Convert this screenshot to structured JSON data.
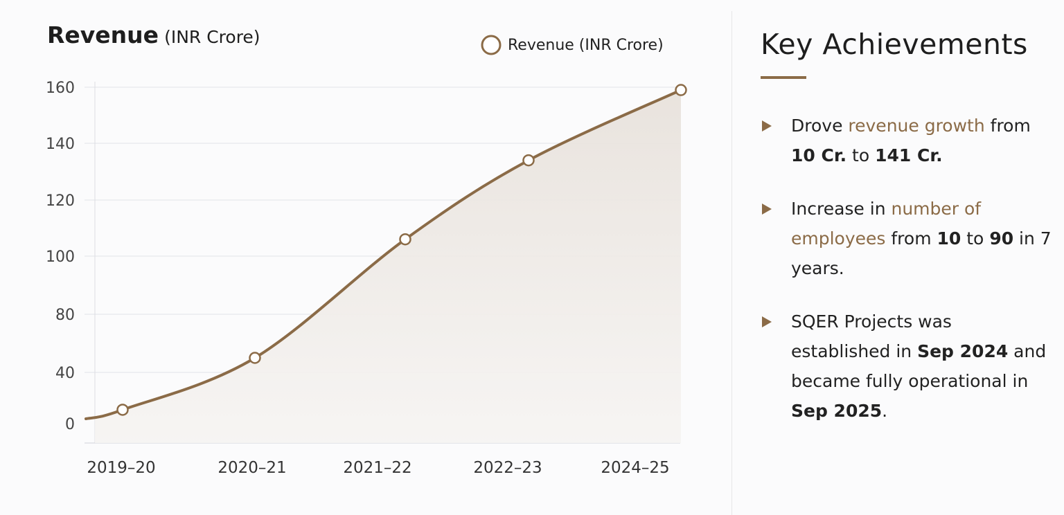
{
  "chart_data": {
    "type": "area",
    "title": "Revenue",
    "title_unit": "(INR Crore)",
    "legend": {
      "label": "Revenue (INR Crore)",
      "placement": "top-right"
    },
    "categories": [
      "2019–20",
      "2020–21",
      "2021–22",
      "2022–23",
      "2024–25"
    ],
    "series": [
      {
        "name": "Revenue (INR Crore)",
        "values": [
          14,
          50,
          106,
          134,
          159
        ]
      }
    ],
    "y_ticks": [
      "0",
      "40",
      "80",
      "100",
      "120",
      "140",
      "160"
    ],
    "ylim": [
      0,
      160
    ],
    "grid": true,
    "color": "#8b6b47"
  },
  "panel": {
    "title": "Key Achievements",
    "items": [
      {
        "t1": "Drove ",
        "hl": "revenue growth",
        "t2": " from ",
        "b1": "10 Cr.",
        "t3": " to ",
        "b2": "141 Cr.",
        "t4": ""
      },
      {
        "t1": "Increase in ",
        "hl": "number of employees",
        "t2": " from ",
        "b1": "10",
        "t3": " to ",
        "b2": "90",
        "t4": " in 7 years."
      },
      {
        "t1": "SQER Projects was established in ",
        "hl": "",
        "t2": "",
        "b1": "Sep 2024",
        "t3": " and became fully operational in ",
        "b2": "Sep 2025",
        "t4": "."
      }
    ]
  },
  "colors": {
    "accent": "#8b6b47",
    "grid": "#e2e3e8",
    "text": "#222222"
  }
}
